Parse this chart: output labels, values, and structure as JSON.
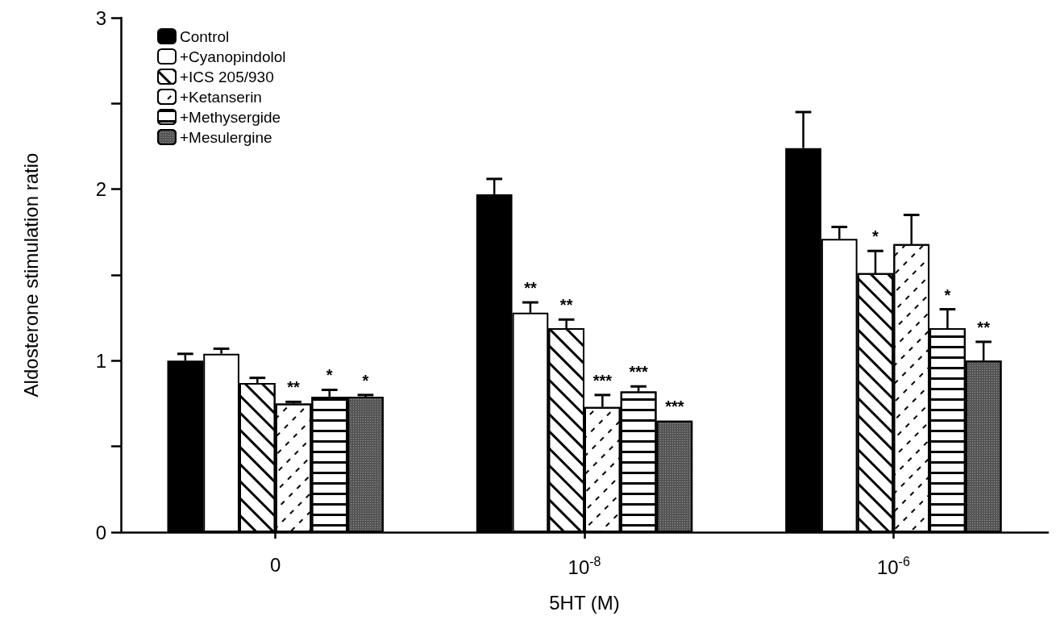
{
  "chart_data": {
    "type": "bar",
    "xlabel": "5HT (M)",
    "ylabel": "Aldosterone stimulation ratio",
    "categories": [
      "0",
      "10$^{-8}$",
      "10$^{-6}$"
    ],
    "series": [
      {
        "name": "Control",
        "color": "#000000",
        "values": [
          1.0,
          1.97,
          2.24
        ],
        "errors": [
          0.04,
          0.09,
          0.21
        ]
      },
      {
        "name": "+Cyanopindolol",
        "color": "#ffffff",
        "values": [
          1.04,
          1.28,
          1.71
        ],
        "errors": [
          0.03,
          0.06,
          0.07
        ],
        "value_labels": [
          null,
          "**",
          null
        ]
      },
      {
        "name": "+ICS 205/930",
        "color": "#ffffff",
        "values": [
          0.87,
          1.19,
          1.51
        ],
        "errors": [
          0.03,
          0.05,
          0.13
        ],
        "value_labels": [
          null,
          "**",
          "*"
        ]
      },
      {
        "name": "+Ketanserin",
        "color": "#ffffff",
        "values": [
          0.75,
          0.73,
          1.68
        ],
        "errors": [
          0.01,
          0.07,
          0.17
        ],
        "value_labels": [
          "**",
          "***",
          null
        ]
      },
      {
        "name": "+Methysergide",
        "color": "#ffffff",
        "values": [
          0.79,
          0.82,
          1.19
        ],
        "errors": [
          0.04,
          0.03,
          0.11
        ],
        "value_labels": [
          "*",
          "***",
          "*"
        ]
      },
      {
        "name": "+Mesulergine",
        "color": "#555555",
        "values": [
          0.79,
          0.65,
          1.0
        ],
        "errors": [
          0.01,
          null,
          0.11
        ],
        "value_labels": [
          "*",
          "***",
          "**"
        ]
      }
    ],
    "ylim": [
      0,
      3
    ],
    "yticks": [
      0,
      {
        "value": 0.5,
        "label": null
      },
      1,
      {
        "value": 1.5,
        "label": null
      },
      2,
      {
        "value": 2.5,
        "label": null
      },
      3
    ],
    "grid": false,
    "legend": "top left"
  }
}
